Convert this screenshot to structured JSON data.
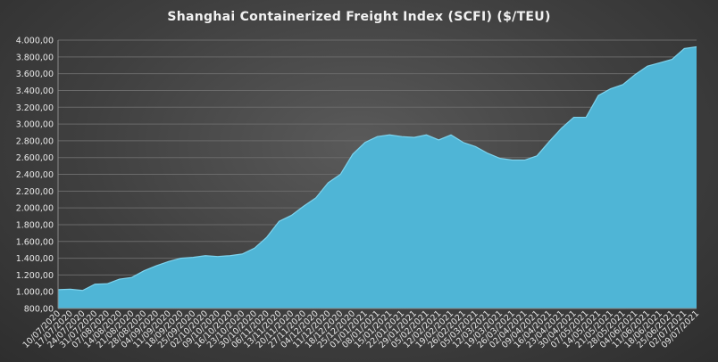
{
  "chart_data": {
    "type": "area",
    "title": "Shanghai Containerized Freight Index  (SCFI)  ($/TEU)",
    "xlabel": "",
    "ylabel": "",
    "ylim": [
      800,
      4000
    ],
    "yticks": [
      "4.000,00",
      "3.800,00",
      "3.600,00",
      "3.400,00",
      "3.200,00",
      "3.000,00",
      "2.800,00",
      "2.600,00",
      "2.400,00",
      "2.200,00",
      "2.000,00",
      "1.800,00",
      "1.600,00",
      "1.400,00",
      "1.200,00",
      "1.000,00",
      "800,00"
    ],
    "ytick_values": [
      4000,
      3800,
      3600,
      3400,
      3200,
      3000,
      2800,
      2600,
      2400,
      2200,
      2000,
      1800,
      1600,
      1400,
      1200,
      1000,
      800
    ],
    "grid": true,
    "legend": "none",
    "fill_color": "#4fb5d6",
    "edge_color": "#7dd3ee",
    "categories": [
      "10/07/2020",
      "17/07/2020",
      "24/07/2020",
      "31/07/2020",
      "07/08/2020",
      "14/08/2020",
      "21/08/2020",
      "28/08/2020",
      "04/09/2020",
      "11/09/2020",
      "18/09/2020",
      "25/09/2020",
      "02/10/2020",
      "09/10/2020",
      "16/10/2020",
      "23/10/2020",
      "30/10/2020",
      "06/11/2020",
      "13/11/2020",
      "20/11/2020",
      "27/11/2020",
      "04/12/2020",
      "11/12/2020",
      "18/12/2020",
      "25/12/2020",
      "01/01/2021",
      "08/01/2021",
      "15/01/2021",
      "22/01/2021",
      "29/01/2021",
      "05/02/2021",
      "12/02/2021",
      "19/02/2021",
      "26/02/2021",
      "05/03/2021",
      "12/03/2021",
      "19/03/2021",
      "26/03/2021",
      "02/04/2021",
      "09/04/2021",
      "16/04/2021",
      "23/04/2021",
      "30/04/2021",
      "07/05/2021",
      "14/05/2021",
      "21/05/2021",
      "28/05/2021",
      "04/06/2021",
      "11/06/2021",
      "18/06/2021",
      "25/06/2021",
      "02/07/2021",
      "09/07/2021"
    ],
    "x_tick_labels": [
      "10/07/2020",
      "17/07/2020",
      "24/07/2020",
      "31/07/2020",
      "07/08/2020",
      "14/08/2020",
      "21/08/2020",
      "28/08/2020",
      "04/09/2020",
      "11/09/2020",
      "18/09/2020",
      "25/09/2020",
      "02/10/2020",
      "09/10/2020",
      "16/10/2020",
      "23/10/2020",
      "30/10/2020",
      "06/11/2020",
      "13/11/2020",
      "20/11/2020",
      "27/11/2020",
      "04/12/2020",
      "11/12/2020",
      "18/12/2020",
      "25/12/2020",
      "01/01/2021",
      "08/01/2021",
      "15/01/2021",
      "22/01/2021",
      "29/01/2021",
      "05/02/2021",
      "12/02/2021",
      "19/02/2021",
      "26/02/2021",
      "05/03/2021",
      "12/03/2021",
      "19/03/2021",
      "26/03/2021",
      "02/04/2021",
      "09/04/2021",
      "16/04/2021",
      "23/04/2021",
      "30/04/2021",
      "07/05/2021",
      "14/05/2021",
      "21/05/2021",
      "28/05/2021",
      "04/06/2021",
      "11/06/2021",
      "18/06/2021",
      "25/06/2021",
      "02/07/2021",
      "09/07/2021"
    ],
    "values": [
      1025,
      1030,
      1015,
      1090,
      1095,
      1150,
      1170,
      1250,
      1310,
      1360,
      1400,
      1410,
      1430,
      1420,
      1430,
      1450,
      1520,
      1650,
      1840,
      1910,
      2020,
      2120,
      2300,
      2400,
      2640,
      2780,
      2850,
      2870,
      2850,
      2840,
      2870,
      2810,
      2870,
      2780,
      2730,
      2650,
      2590,
      2570,
      2570,
      2620,
      2790,
      2950,
      3080,
      3080,
      3340,
      3420,
      3470,
      3590,
      3690,
      3730,
      3770,
      3900,
      3920
    ]
  }
}
